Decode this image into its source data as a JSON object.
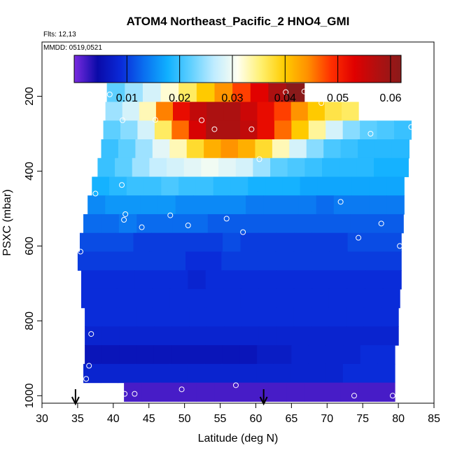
{
  "chart_data": {
    "type": "heatmap",
    "title": "ATOM4 Northeast_Pacific_2 HNO4_GMI",
    "annotations": {
      "flights": "Flts: 12,13",
      "dates": "MMDD: 0519,0521"
    },
    "xlabel": "Latitude (deg N)",
    "ylabel": "PSXC (mbar)",
    "xlim": [
      30,
      85
    ],
    "ylim": [
      1020,
      55
    ],
    "y_reversed": true,
    "x_ticks": [
      30,
      35,
      40,
      45,
      50,
      55,
      60,
      65,
      70,
      75,
      80,
      85
    ],
    "y_ticks": [
      200,
      400,
      600,
      800,
      1000
    ],
    "colorbar": {
      "range": [
        0.0,
        0.062
      ],
      "ticks": [
        0.01,
        0.02,
        0.03,
        0.04,
        0.05,
        0.06
      ],
      "tick_labels": [
        "0.01",
        "0.02",
        "0.03",
        "0.04",
        "0.05",
        "0.06"
      ],
      "colors": [
        "#7a2be0",
        "#0a0aa8",
        "#0a2ad8",
        "#0a70f0",
        "#10b0ff",
        "#60d0ff",
        "#c0ecff",
        "#fffff0",
        "#fff070",
        "#ffcc00",
        "#ff9000",
        "#ff3000",
        "#e00000",
        "#b01010",
        "#8a1a1a"
      ]
    },
    "arrows_lat": [
      34.7,
      61.1
    ],
    "layers": [
      {
        "p0": 165,
        "p1": 215,
        "x0": 39.1,
        "x1": 66.8,
        "v": [
          0.022,
          0.025,
          0.028,
          0.032,
          0.036,
          0.04,
          0.044,
          0.048,
          0.053,
          0.058,
          0.062
        ]
      },
      {
        "p0": 215,
        "p1": 265,
        "x0": 38.9,
        "x1": 74.4,
        "v": [
          0.025,
          0.028,
          0.033,
          0.045,
          0.052,
          0.056,
          0.058,
          0.058,
          0.055,
          0.052,
          0.048,
          0.044,
          0.04,
          0.037,
          0.036
        ]
      },
      {
        "p0": 265,
        "p1": 315,
        "x0": 38.6,
        "x1": 81.8,
        "v": [
          0.022,
          0.024,
          0.028,
          0.036,
          0.046,
          0.054,
          0.058,
          0.058,
          0.056,
          0.052,
          0.046,
          0.04,
          0.034,
          0.028,
          0.024,
          0.022,
          0.021,
          0.02
        ]
      },
      {
        "p0": 315,
        "p1": 365,
        "x0": 38.3,
        "x1": 81.5,
        "v": [
          0.02,
          0.022,
          0.025,
          0.029,
          0.033,
          0.038,
          0.042,
          0.044,
          0.042,
          0.038,
          0.033,
          0.028,
          0.024,
          0.021,
          0.02,
          0.019,
          0.019,
          0.019
        ]
      },
      {
        "p0": 365,
        "p1": 415,
        "x0": 37.8,
        "x1": 81.4,
        "v": [
          0.02,
          0.022,
          0.025,
          0.027,
          0.028,
          0.029,
          0.03,
          0.029,
          0.028,
          0.025,
          0.022,
          0.021,
          0.02,
          0.019,
          0.019,
          0.019,
          0.018,
          0.018
        ]
      },
      {
        "p0": 415,
        "p1": 465,
        "x0": 37.0,
        "x1": 80.8,
        "v": [
          0.018,
          0.019,
          0.02,
          0.02,
          0.021,
          0.02,
          0.02,
          0.019,
          0.019,
          0.018,
          0.018,
          0.018,
          0.017,
          0.017,
          0.017,
          0.017,
          0.017,
          0.017
        ]
      },
      {
        "p0": 465,
        "p1": 515,
        "x0": 36.4,
        "x1": 80.8,
        "v": [
          0.015,
          0.016,
          0.016,
          0.016,
          0.016,
          0.015,
          0.015,
          0.015,
          0.015,
          0.014,
          0.014,
          0.014,
          0.014,
          0.013,
          0.014,
          0.014,
          0.014,
          0.014
        ]
      },
      {
        "p0": 515,
        "p1": 565,
        "x0": 35.8,
        "x1": 80.7,
        "v": [
          0.013,
          0.013,
          0.014,
          0.013,
          0.013,
          0.013,
          0.013,
          0.012,
          0.012,
          0.012,
          0.012,
          0.012,
          0.012,
          0.012,
          0.012,
          0.012,
          0.012,
          0.012
        ]
      },
      {
        "p0": 565,
        "p1": 615,
        "x0": 35.3,
        "x1": 80.4,
        "v": [
          0.011,
          0.011,
          0.011,
          0.01,
          0.01,
          0.01,
          0.01,
          0.01,
          0.011,
          0.01,
          0.01,
          0.01,
          0.01,
          0.01,
          0.01,
          0.011,
          0.011,
          0.011
        ]
      },
      {
        "p0": 615,
        "p1": 665,
        "x0": 35.0,
        "x1": 80.4,
        "v": [
          0.01,
          0.01,
          0.01,
          0.01,
          0.01,
          0.01,
          0.009,
          0.009,
          0.01,
          0.01,
          0.01,
          0.01,
          0.01,
          0.01,
          0.01,
          0.01,
          0.01,
          0.01
        ]
      },
      {
        "p0": 665,
        "p1": 715,
        "x0": 35.5,
        "x1": 80.4,
        "v": [
          0.009,
          0.009,
          0.009,
          0.009,
          0.009,
          0.009,
          0.008,
          0.009,
          0.009,
          0.009,
          0.009,
          0.009,
          0.009,
          0.009,
          0.009,
          0.009,
          0.009,
          0.009
        ]
      },
      {
        "p0": 715,
        "p1": 765,
        "x0": 35.5,
        "x1": 80.2,
        "v": [
          0.009,
          0.009,
          0.009,
          0.009,
          0.009,
          0.009,
          0.009,
          0.009,
          0.009,
          0.009,
          0.009,
          0.009,
          0.009,
          0.009,
          0.009,
          0.009,
          0.009,
          0.009
        ]
      },
      {
        "p0": 765,
        "p1": 815,
        "x0": 36.0,
        "x1": 80.0,
        "v": [
          0.009,
          0.009,
          0.009,
          0.009,
          0.009,
          0.009,
          0.009,
          0.009,
          0.009,
          0.009,
          0.009,
          0.009,
          0.009,
          0.009,
          0.009,
          0.009,
          0.009,
          0.009
        ]
      },
      {
        "p0": 815,
        "p1": 865,
        "x0": 36.0,
        "x1": 80.0,
        "v": [
          0.008,
          0.008,
          0.008,
          0.008,
          0.008,
          0.008,
          0.008,
          0.008,
          0.008,
          0.008,
          0.008,
          0.008,
          0.008,
          0.008,
          0.008,
          0.008,
          0.008,
          0.008
        ]
      },
      {
        "p0": 865,
        "p1": 915,
        "x0": 36.0,
        "x1": 79.5,
        "v": [
          0.006,
          0.006,
          0.006,
          0.006,
          0.006,
          0.006,
          0.006,
          0.006,
          0.006,
          0.006,
          0.007,
          0.007,
          0.008,
          0.008,
          0.008,
          0.008,
          0.009,
          0.009
        ]
      },
      {
        "p0": 915,
        "p1": 965,
        "x0": 35.8,
        "x1": 79.5,
        "v": [
          0.008,
          0.008,
          0.008,
          0.008,
          0.008,
          0.008,
          0.008,
          0.008,
          0.008,
          0.008,
          0.008,
          0.008,
          0.008,
          0.008,
          0.008,
          0.009,
          0.009,
          0.009
        ]
      },
      {
        "p0": 965,
        "p1": 1015,
        "x0": 41.5,
        "x1": 79.5,
        "v": [
          0.002,
          0.002,
          0.002,
          0.002,
          0.002,
          0.002,
          0.002,
          0.002,
          0.002,
          0.002,
          0.002,
          0.002,
          0.002,
          0.002,
          0.002
        ]
      }
    ],
    "observations": [
      [
        39.5,
        195
      ],
      [
        66.8,
        187
      ],
      [
        64.2,
        189
      ],
      [
        69.2,
        218
      ],
      [
        41.3,
        264
      ],
      [
        45.9,
        263
      ],
      [
        52.4,
        264
      ],
      [
        54.2,
        288
      ],
      [
        59.4,
        288
      ],
      [
        76.1,
        300
      ],
      [
        81.8,
        282
      ],
      [
        60.5,
        368
      ],
      [
        37.5,
        460
      ],
      [
        41.2,
        437
      ],
      [
        71.9,
        482
      ],
      [
        41.7,
        515
      ],
      [
        41.5,
        530
      ],
      [
        44.0,
        550
      ],
      [
        48.0,
        518
      ],
      [
        50.5,
        545
      ],
      [
        55.9,
        527
      ],
      [
        58.2,
        563
      ],
      [
        77.6,
        540
      ],
      [
        74.4,
        578
      ],
      [
        80.2,
        600
      ],
      [
        35.4,
        615
      ],
      [
        36.9,
        835
      ],
      [
        36.6,
        920
      ],
      [
        36.2,
        955
      ],
      [
        41.6,
        995
      ],
      [
        43.0,
        995
      ],
      [
        49.6,
        983
      ],
      [
        57.2,
        972
      ],
      [
        73.8,
        1000
      ],
      [
        79.2,
        1000
      ]
    ]
  }
}
